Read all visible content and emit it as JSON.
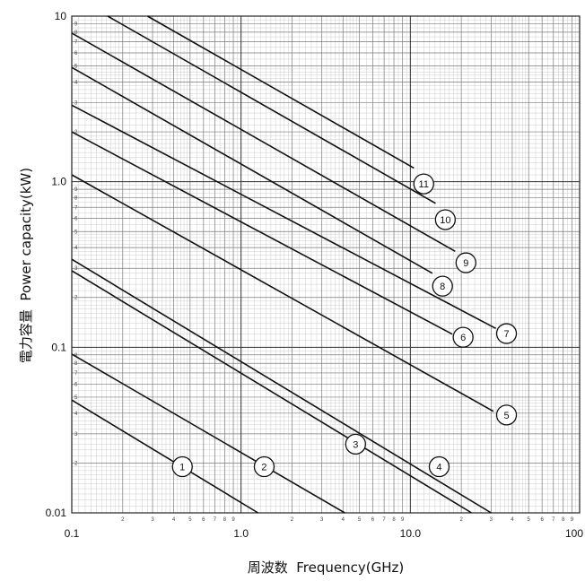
{
  "chart_data": {
    "type": "line",
    "xlabel": "周波数  Frequency(GHz)",
    "ylabel": "電力容量  Power capacity(kW)",
    "xscale": "log",
    "yscale": "log",
    "xlim": [
      0.1,
      100
    ],
    "ylim": [
      0.01,
      10
    ],
    "grid": true,
    "x_ticks": [
      {
        "value": 0.1,
        "label": "0.1"
      },
      {
        "value": 1,
        "label": "1.0"
      },
      {
        "value": 10,
        "label": "10.0"
      },
      {
        "value": 100,
        "label": "100"
      }
    ],
    "y_ticks": [
      {
        "value": 0.01,
        "label": "0.01"
      },
      {
        "value": 0.1,
        "label": "0.1"
      },
      {
        "value": 1,
        "label": "1.0"
      },
      {
        "value": 10,
        "label": "10"
      }
    ],
    "minor_tick_labels": [
      "2",
      "3",
      "4",
      "5",
      "6",
      "7",
      "8",
      "9"
    ],
    "series": [
      {
        "name": "1",
        "points": [
          [
            0.1,
            0.048
          ],
          [
            1.26,
            0.01
          ]
        ],
        "label_at": [
          0.45,
          0.019
        ]
      },
      {
        "name": "2",
        "points": [
          [
            0.1,
            0.091
          ],
          [
            4.1,
            0.01
          ]
        ],
        "label_at": [
          1.37,
          0.019
        ]
      },
      {
        "name": "3",
        "points": [
          [
            0.1,
            0.34
          ],
          [
            30,
            0.01
          ]
        ],
        "label_at": [
          4.75,
          0.026
        ]
      },
      {
        "name": "4",
        "points": [
          [
            0.1,
            0.29
          ],
          [
            23,
            0.01
          ]
        ],
        "label_at": [
          14.8,
          0.019
        ]
      },
      {
        "name": "5",
        "points": [
          [
            0.1,
            1.1
          ],
          [
            31,
            0.041
          ]
        ],
        "label_at": [
          37,
          0.039
        ]
      },
      {
        "name": "6",
        "points": [
          [
            0.1,
            2.0
          ],
          [
            17.7,
            0.12
          ]
        ],
        "label_at": [
          20.5,
          0.115
        ]
      },
      {
        "name": "7",
        "points": [
          [
            0.1,
            2.9
          ],
          [
            32,
            0.13
          ]
        ],
        "label_at": [
          37,
          0.121
        ]
      },
      {
        "name": "8",
        "points": [
          [
            0.1,
            4.9
          ],
          [
            13.5,
            0.28
          ]
        ],
        "label_at": [
          15.5,
          0.234
        ]
      },
      {
        "name": "9",
        "points": [
          [
            0.1,
            7.9
          ],
          [
            18.4,
            0.38
          ]
        ],
        "label_at": [
          21.3,
          0.324
        ]
      },
      {
        "name": "10",
        "points": [
          [
            0.163,
            10
          ],
          [
            14.1,
            0.74
          ]
        ],
        "label_at": [
          16.1,
          0.59
        ]
      },
      {
        "name": "11",
        "points": [
          [
            0.28,
            10
          ],
          [
            10.5,
            1.21
          ]
        ],
        "label_at": [
          12,
          0.97
        ]
      }
    ],
    "colors": {
      "line": "#111111",
      "grid_major": "#2e2e2e",
      "grid_mid": "#7a7a7a",
      "grid_fine": "#c6c6c6",
      "label_fill": "#ffffff"
    }
  }
}
